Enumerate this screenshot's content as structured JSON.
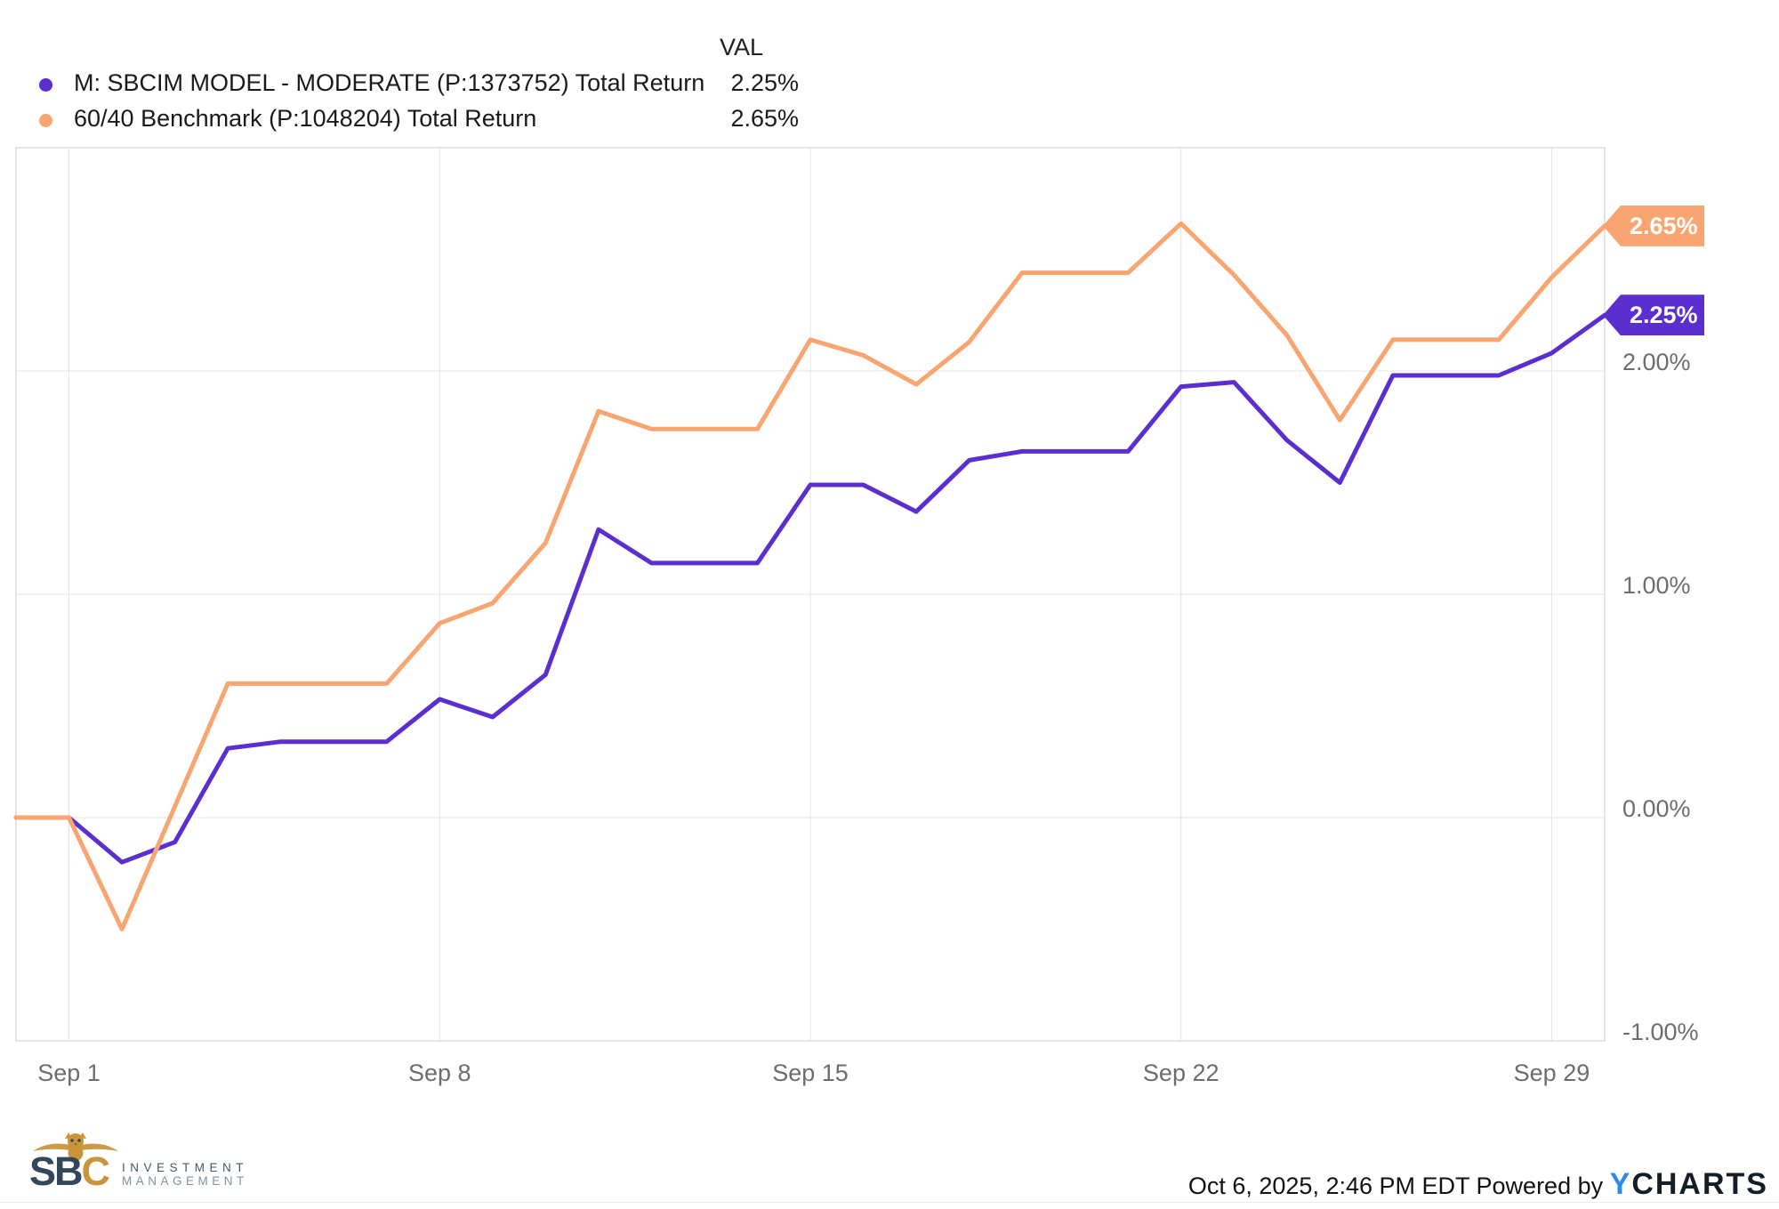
{
  "legend": {
    "val_header": "VAL",
    "series": [
      {
        "label": "M: SBCIM MODEL - MODERATE (P:1373752) Total Return",
        "value": "2.25%",
        "color": "#5b2ed0"
      },
      {
        "label": "60/40 Benchmark (P:1048204) Total Return",
        "value": "2.65%",
        "color": "#f9a571"
      }
    ]
  },
  "chart_data": {
    "type": "line",
    "x": [
      "Aug 31",
      "Sep 1",
      "Sep 2",
      "Sep 3",
      "Sep 4",
      "Sep 5",
      "Sep 6",
      "Sep 7",
      "Sep 8",
      "Sep 9",
      "Sep 10",
      "Sep 11",
      "Sep 12",
      "Sep 13",
      "Sep 14",
      "Sep 15",
      "Sep 16",
      "Sep 17",
      "Sep 18",
      "Sep 19",
      "Sep 20",
      "Sep 21",
      "Sep 22",
      "Sep 23",
      "Sep 24",
      "Sep 25",
      "Sep 26",
      "Sep 27",
      "Sep 28",
      "Sep 29",
      "Sep 30"
    ],
    "series": [
      {
        "name": "M: SBCIM MODEL - MODERATE (P:1373752) Total Return",
        "color": "#5b2ed0",
        "values": [
          0.0,
          0.0,
          -0.2,
          -0.11,
          0.31,
          0.34,
          0.34,
          0.34,
          0.53,
          0.45,
          0.64,
          1.29,
          1.14,
          1.14,
          1.14,
          1.49,
          1.49,
          1.37,
          1.6,
          1.64,
          1.64,
          1.64,
          1.93,
          1.95,
          1.69,
          1.5,
          1.98,
          1.98,
          1.98,
          2.08,
          2.25
        ]
      },
      {
        "name": "60/40 Benchmark (P:1048204) Total Return",
        "color": "#f9a571",
        "values": [
          0.0,
          0.0,
          -0.5,
          0.05,
          0.6,
          0.6,
          0.6,
          0.6,
          0.87,
          0.96,
          1.23,
          1.82,
          1.74,
          1.74,
          1.74,
          2.14,
          2.07,
          1.94,
          2.13,
          2.44,
          2.44,
          2.44,
          2.66,
          2.43,
          2.16,
          1.78,
          2.14,
          2.14,
          2.14,
          2.42,
          2.65
        ]
      }
    ],
    "x_ticks": [
      {
        "label": "Sep 1",
        "day_index": 1
      },
      {
        "label": "Sep 8",
        "day_index": 8
      },
      {
        "label": "Sep 15",
        "day_index": 15
      },
      {
        "label": "Sep 22",
        "day_index": 22
      },
      {
        "label": "Sep 29",
        "day_index": 29
      }
    ],
    "y_ticks": [
      {
        "label": "2.00%",
        "value": 2
      },
      {
        "label": "1.00%",
        "value": 1
      },
      {
        "label": "0.00%",
        "value": 0
      },
      {
        "label": "-1.00%",
        "value": -1
      }
    ],
    "ylim": [
      -1,
      3
    ],
    "grid": true,
    "legend_position": "top-left",
    "end_labels": [
      {
        "text": "2.65%",
        "value": 2.65,
        "color": "#f9a571"
      },
      {
        "text": "2.25%",
        "value": 2.25,
        "color": "#5b2ed0"
      }
    ],
    "grid_color": "#e4e4e4",
    "border_color": "#dcdcdc"
  },
  "footer": {
    "timestamp": "Oct 6, 2025, 2:46 PM EDT",
    "powered_by": "Powered by",
    "ycharts_y": "Y",
    "ycharts_rest": "CHARTS",
    "logo": {
      "sbc_sb": "SB",
      "sbc_c": "C",
      "line1": "INVESTMENT",
      "line2": "MANAGEMENT",
      "owl_color": "#c9953b"
    }
  }
}
